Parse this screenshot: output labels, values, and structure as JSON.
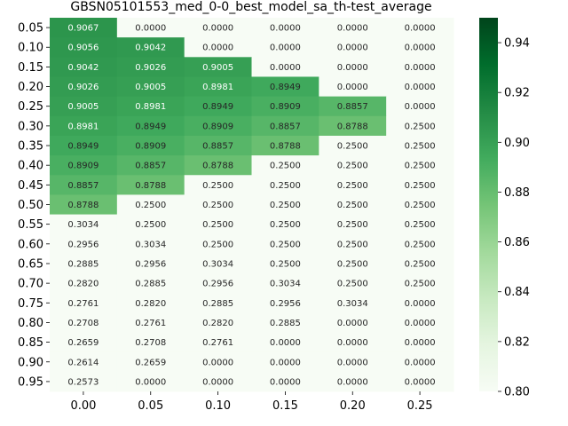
{
  "chart_data": {
    "type": "heatmap",
    "title": "GBSN05101553_med_0-0_best_model_sa_th-test_average",
    "xlabel": "",
    "ylabel": "",
    "x_categories": [
      "0.00",
      "0.05",
      "0.10",
      "0.15",
      "0.20",
      "0.25"
    ],
    "y_categories": [
      "0.05",
      "0.10",
      "0.15",
      "0.20",
      "0.25",
      "0.30",
      "0.35",
      "0.40",
      "0.45",
      "0.50",
      "0.55",
      "0.60",
      "0.65",
      "0.70",
      "0.75",
      "0.80",
      "0.85",
      "0.90",
      "0.95"
    ],
    "values": [
      [
        0.9067,
        0.0,
        0.0,
        0.0,
        0.0,
        0.0
      ],
      [
        0.9056,
        0.9042,
        0.0,
        0.0,
        0.0,
        0.0
      ],
      [
        0.9042,
        0.9026,
        0.9005,
        0.0,
        0.0,
        0.0
      ],
      [
        0.9026,
        0.9005,
        0.8981,
        0.8949,
        0.0,
        0.0
      ],
      [
        0.9005,
        0.8981,
        0.8949,
        0.8909,
        0.8857,
        0.0
      ],
      [
        0.8981,
        0.8949,
        0.8909,
        0.8857,
        0.8788,
        0.25
      ],
      [
        0.8949,
        0.8909,
        0.8857,
        0.8788,
        0.25,
        0.25
      ],
      [
        0.8909,
        0.8857,
        0.8788,
        0.25,
        0.25,
        0.25
      ],
      [
        0.8857,
        0.8788,
        0.25,
        0.25,
        0.25,
        0.25
      ],
      [
        0.8788,
        0.25,
        0.25,
        0.25,
        0.25,
        0.25
      ],
      [
        0.3034,
        0.25,
        0.25,
        0.25,
        0.25,
        0.25
      ],
      [
        0.2956,
        0.3034,
        0.25,
        0.25,
        0.25,
        0.25
      ],
      [
        0.2885,
        0.2956,
        0.3034,
        0.25,
        0.25,
        0.25
      ],
      [
        0.282,
        0.2885,
        0.2956,
        0.3034,
        0.25,
        0.25
      ],
      [
        0.2761,
        0.282,
        0.2885,
        0.2956,
        0.3034,
        0.0
      ],
      [
        0.2708,
        0.2761,
        0.282,
        0.2885,
        0.0,
        0.0
      ],
      [
        0.2659,
        0.2708,
        0.2761,
        0.0,
        0.0,
        0.0
      ],
      [
        0.2614,
        0.2659,
        0.0,
        0.0,
        0.0,
        0.0
      ],
      [
        0.2573,
        0.0,
        0.0,
        0.0,
        0.0,
        0.0
      ]
    ],
    "colormap": "Greens",
    "color_range": [
      0.8,
      0.95
    ],
    "colorbar_ticks": [
      "0.80",
      "0.82",
      "0.84",
      "0.86",
      "0.88",
      "0.90",
      "0.92",
      "0.94"
    ],
    "colorbar_tick_values": [
      0.8,
      0.82,
      0.84,
      0.86,
      0.88,
      0.9,
      0.92,
      0.94
    ],
    "colors": {
      "low": "#f7fcf5",
      "high": "#00441b"
    },
    "grid": false,
    "legend": "colorbar-right"
  }
}
